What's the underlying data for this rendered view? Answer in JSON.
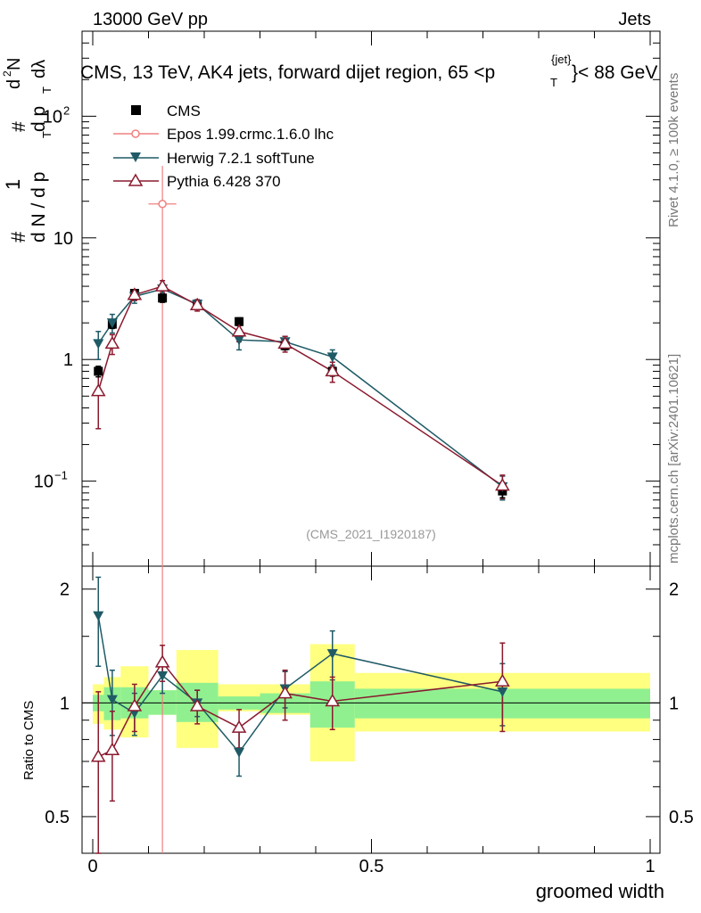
{
  "header": {
    "left": "13000 GeV pp",
    "right": "Jets"
  },
  "title": "CMS, 13 TeV, AK4 jets, forward dijet region, 65 <p",
  "title_sup": "{jet}",
  "title_sub": "T",
  "title_end": "}< 88 GeV",
  "ylabel_main": {
    "part_hash1": "#",
    "part_num1": "1",
    "part_den1": "d N / d p",
    "part_hash2": "#",
    "part_den2": "d p",
    "part_d2n": "d",
    "part_sup2": "2",
    "part_n": "N",
    "part_dl": "dλ",
    "sub_t": "T"
  },
  "ylabel_ratio": "Ratio to CMS",
  "xlabel": "groomed width",
  "side_labels": {
    "rivet": "Rivet 4.1.0, ≥ 100k events",
    "mcplots": "mcplots.cern.ch [arXiv:2401.10621]"
  },
  "watermark": "(CMS_2021_I1920187)",
  "legend": [
    {
      "name": "CMS",
      "marker": "square",
      "color": "#000000"
    },
    {
      "name": "Epos 1.99.crmc.1.6.0 lhc",
      "marker": "open-circle",
      "color": "#f08080"
    },
    {
      "name": "Herwig 7.2.1 softTune",
      "marker": "triangle-down",
      "color": "#1f5a66"
    },
    {
      "name": "Pythia 6.428 370",
      "marker": "open-triangle",
      "color": "#8b1a2e"
    }
  ],
  "chart_data": {
    "type": "scatter",
    "x_range": [
      0,
      1
    ],
    "x_ticks": [
      {
        "v": 0,
        "label": "0"
      },
      {
        "v": 0.5,
        "label": "0.5"
      },
      {
        "v": 1,
        "label": "1"
      }
    ],
    "y_main_range": [
      0.02,
      500
    ],
    "y_main_ticks": [
      {
        "v": 0.1,
        "label": "10",
        "sup": "−1"
      },
      {
        "v": 1,
        "label": "1",
        "sup": ""
      },
      {
        "v": 10,
        "label": "10",
        "sup": ""
      },
      {
        "v": 100,
        "label": "10",
        "sup": "2"
      }
    ],
    "y_ratio_range": [
      0.4,
      2.3
    ],
    "y_ratio_ticks": [
      {
        "v": 0.5,
        "label": "0.5"
      },
      {
        "v": 1,
        "label": "1"
      },
      {
        "v": 2,
        "label": "2"
      }
    ],
    "bins": [
      [
        0,
        0.02
      ],
      [
        0.02,
        0.05
      ],
      [
        0.05,
        0.1
      ],
      [
        0.1,
        0.15
      ],
      [
        0.15,
        0.225
      ],
      [
        0.225,
        0.3
      ],
      [
        0.3,
        0.39
      ],
      [
        0.39,
        0.47
      ],
      [
        0.47,
        1.0
      ]
    ],
    "cms": {
      "x": [
        0.01,
        0.035,
        0.075,
        0.125,
        0.1875,
        0.2625,
        0.345,
        0.43,
        0.735
      ],
      "y": [
        0.8,
        1.95,
        3.5,
        3.2,
        2.85,
        2.05,
        1.3,
        0.8,
        0.083
      ],
      "yerr": [
        0.08,
        0.15,
        0.25,
        0.25,
        0.2,
        0.15,
        0.1,
        0.07,
        0.01
      ]
    },
    "epos": {
      "x": [
        0.125
      ],
      "y": [
        19
      ],
      "yerr_lo": [
        18.98
      ],
      "yerr_hi": [
        20
      ],
      "xerr": 0.025
    },
    "herwig": {
      "x": [
        0.01,
        0.035,
        0.075,
        0.125,
        0.1875,
        0.2625,
        0.345,
        0.43,
        0.735
      ],
      "y": [
        1.35,
        2.0,
        3.3,
        3.8,
        2.85,
        1.45,
        1.4,
        1.05,
        0.09
      ],
      "yerr": [
        0.35,
        0.35,
        0.4,
        0.4,
        0.25,
        0.25,
        0.15,
        0.15,
        0.02
      ]
    },
    "pythia": {
      "x": [
        0.01,
        0.035,
        0.075,
        0.125,
        0.1875,
        0.2625,
        0.345,
        0.43,
        0.735
      ],
      "y": [
        0.55,
        1.35,
        3.4,
        4.0,
        2.8,
        1.7,
        1.35,
        0.8,
        0.092
      ],
      "yerr": [
        0.28,
        0.25,
        0.35,
        0.45,
        0.3,
        0.3,
        0.2,
        0.15,
        0.02
      ]
    },
    "ratio_band_green": [
      [
        0.95,
        1.05
      ],
      [
        0.9,
        1.1
      ],
      [
        0.91,
        1.1
      ],
      [
        0.93,
        1.08
      ],
      [
        0.89,
        1.13
      ],
      [
        0.96,
        1.04
      ],
      [
        0.94,
        1.06
      ],
      [
        0.86,
        1.14
      ],
      [
        0.91,
        1.09
      ]
    ],
    "ratio_band_yellow": [
      [
        0.88,
        1.12
      ],
      [
        0.85,
        1.17
      ],
      [
        0.81,
        1.25
      ],
      [
        0.93,
        1.08
      ],
      [
        0.76,
        1.38
      ],
      [
        0.95,
        1.12
      ],
      [
        0.93,
        1.12
      ],
      [
        0.7,
        1.43
      ],
      [
        0.84,
        1.2
      ]
    ],
    "ratio_herwig": {
      "y": [
        1.7,
        1.02,
        0.94,
        1.18,
        1.0,
        0.74,
        1.09,
        1.35,
        1.07
      ],
      "yerr": [
        0.45,
        0.2,
        0.12,
        0.12,
        0.08,
        0.1,
        0.12,
        0.2,
        0.2
      ]
    },
    "ratio_pythia": {
      "y": [
        0.72,
        0.75,
        0.98,
        1.28,
        0.98,
        0.86,
        1.06,
        1.01,
        1.14
      ],
      "yerr": [
        0.35,
        0.2,
        0.14,
        0.14,
        0.1,
        0.1,
        0.16,
        0.16,
        0.3
      ]
    }
  }
}
